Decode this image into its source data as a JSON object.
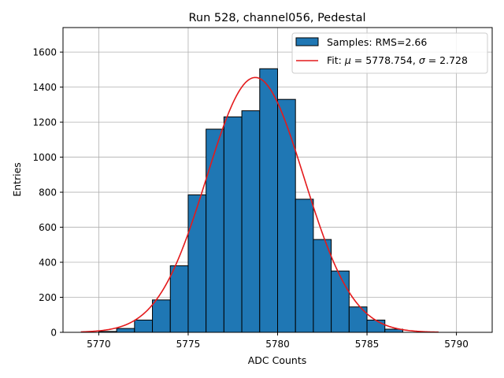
{
  "chart_data": {
    "type": "bar",
    "title": "Run 528, channel056, Pedestal",
    "xlabel": "ADC Counts",
    "ylabel": "Entries",
    "xlim": [
      5768.0,
      5792.0
    ],
    "ylim": [
      0,
      1740
    ],
    "xticks": [
      5770,
      5775,
      5780,
      5785,
      5790
    ],
    "yticks": [
      0,
      200,
      400,
      600,
      800,
      1000,
      1200,
      1400,
      1600
    ],
    "grid": true,
    "legend_position": "top-right",
    "histogram": {
      "name": "Samples: RMS=2.66",
      "color": "#1f77b4",
      "edgecolor": "#000000",
      "bin_edges": [
        5770,
        5771,
        5772,
        5773,
        5774,
        5775,
        5776,
        5777,
        5778,
        5779,
        5780,
        5781,
        5782,
        5783,
        5784,
        5785,
        5786,
        5787
      ],
      "counts": [
        5,
        22,
        70,
        185,
        380,
        785,
        1160,
        1230,
        1265,
        1505,
        1330,
        760,
        530,
        350,
        145,
        70,
        18
      ]
    },
    "fit": {
      "name_prefix": "Fit: ",
      "mu_symbol": "μ",
      "mu_text": " = 5778.754, ",
      "sigma_symbol": "σ",
      "sigma_text": " = 2.728",
      "color": "#e41a1c",
      "mu": 5778.754,
      "sigma": 2.728,
      "amplitude": 1455,
      "x_range": [
        5769,
        5789
      ]
    }
  }
}
